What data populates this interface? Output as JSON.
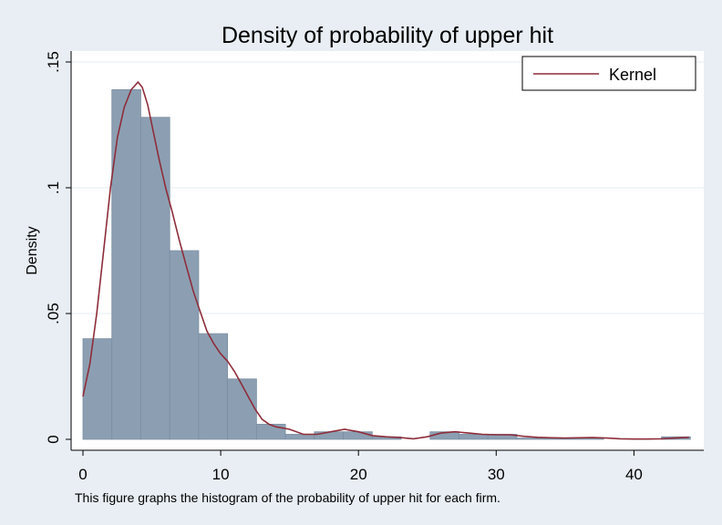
{
  "chart_data": {
    "type": "bar",
    "title": "Density of probability of upper hit",
    "ylabel": "Density",
    "xlabel": "",
    "note": "This figure graphs the histogram of the probability of upper hit for each firm.",
    "xlim": [
      0,
      44.5
    ],
    "ylim": [
      0,
      0.15
    ],
    "xticks": [
      0,
      10,
      20,
      30,
      40
    ],
    "xtick_labels": [
      "0",
      "10",
      "20",
      "30",
      "40"
    ],
    "yticks": [
      0,
      0.05,
      0.1,
      0.15
    ],
    "ytick_labels": [
      "0",
      ".05",
      ".1",
      ".15"
    ],
    "grid": true,
    "legend_position": "top-right",
    "colors": {
      "bars": "#8c9fb2",
      "kernel": "#8e2d3a",
      "plot_bg": "#ffffff",
      "outer_bg": "#e8eef3"
    },
    "histogram": {
      "bin_edges": [
        0,
        2.1,
        4.2,
        6.3,
        8.4,
        10.5,
        12.6,
        14.7,
        16.8,
        18.9,
        21.0,
        23.1,
        25.2,
        27.3,
        29.4,
        31.5,
        33.6,
        35.7,
        37.8,
        39.9,
        42.0,
        44.1
      ],
      "values": [
        0.04,
        0.139,
        0.128,
        0.075,
        0.042,
        0.024,
        0.006,
        0.002,
        0.003,
        0.003,
        0.001,
        0.0,
        0.003,
        0.002,
        0.002,
        0.0005,
        0.0005,
        0.0005,
        0.0,
        0.0,
        0.001
      ]
    },
    "series": [
      {
        "name": "Kernel",
        "x": [
          0,
          0.5,
          1,
          1.5,
          2,
          2.5,
          3,
          3.5,
          4,
          4.3,
          4.7,
          5,
          5.5,
          6,
          6.5,
          7,
          7.5,
          8,
          8.5,
          9,
          9.5,
          10,
          10.5,
          11,
          11.5,
          12,
          12.5,
          13,
          13.5,
          14,
          15,
          16,
          17,
          18,
          19,
          20,
          21,
          22,
          23,
          24,
          25,
          26,
          27,
          28,
          29,
          30,
          31,
          32,
          33,
          34,
          35,
          36,
          37,
          38,
          39,
          40,
          41,
          42,
          43,
          44
        ],
        "y": [
          0.017,
          0.03,
          0.05,
          0.075,
          0.1,
          0.12,
          0.132,
          0.139,
          0.142,
          0.14,
          0.133,
          0.125,
          0.112,
          0.1,
          0.09,
          0.079,
          0.069,
          0.059,
          0.051,
          0.043,
          0.038,
          0.034,
          0.031,
          0.027,
          0.022,
          0.017,
          0.012,
          0.008,
          0.006,
          0.005,
          0.004,
          0.002,
          0.002,
          0.003,
          0.004,
          0.003,
          0.0015,
          0.001,
          0.0007,
          0.0002,
          0.001,
          0.0025,
          0.003,
          0.0025,
          0.002,
          0.0018,
          0.0018,
          0.0012,
          0.0008,
          0.0006,
          0.0005,
          0.0006,
          0.0007,
          0.0005,
          0.0002,
          0.0001,
          0.0001,
          0.0002,
          0.0005,
          0.0008
        ]
      }
    ]
  }
}
